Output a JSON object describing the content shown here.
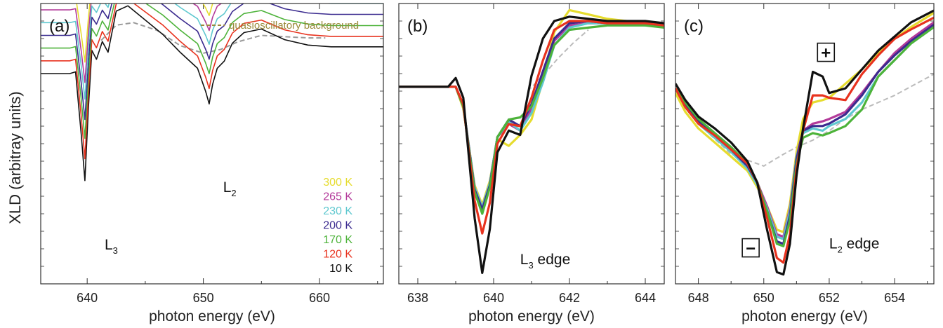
{
  "figure": {
    "ylabel": "XLD  (arbitray units)"
  },
  "chart_data": [
    {
      "type": "line",
      "panel_label": "(a)",
      "xlabel": "photon energy (eV)",
      "xlim": [
        636,
        665.5
      ],
      "ylim": [
        -16.5,
        5.5
      ],
      "xticks": [
        640,
        650,
        660
      ],
      "xminor": [
        645,
        655,
        665
      ],
      "legend_position": "lower-right",
      "annotations": [
        {
          "text": "L",
          "sub": "3",
          "x": 641.5,
          "y": -13.8
        },
        {
          "text": "L",
          "sub": "2",
          "x": 651.7,
          "y": -9.3
        }
      ],
      "reference_legend": {
        "label": "quasioscillatory background",
        "color": "#9a8a3a"
      },
      "background": {
        "name": "quasioscillatory background",
        "color": "#9a9a9a",
        "x": [
          641.2,
          642.5,
          644,
          646,
          648,
          650,
          651.5,
          653,
          655,
          657,
          659,
          660.5
        ],
        "values": [
          2.6,
          3.8,
          4.0,
          3.4,
          2.2,
          1.6,
          1.9,
          2.5,
          3.0,
          2.9,
          2.8,
          2.8
        ]
      },
      "shape": {
        "x": [
          636,
          638.5,
          639,
          639.5,
          639.8,
          640.1,
          640.4,
          640.8,
          641.3,
          641.8,
          642.5,
          643.5,
          645,
          646.5,
          648,
          649.5,
          650.2,
          650.5,
          650.8,
          651.2,
          651.8,
          652.5,
          653.5,
          655,
          657,
          659,
          661,
          663,
          665.5
        ],
        "values": [
          0,
          0,
          0.1,
          -3.5,
          -6.0,
          -2.0,
          1.3,
          0.8,
          1.8,
          1.2,
          3.5,
          3.8,
          3.0,
          2.2,
          1.2,
          0.3,
          -1.0,
          -1.7,
          -0.6,
          0.3,
          0.7,
          1.7,
          2.3,
          2.5,
          1.9,
          1.6,
          1.5,
          1.5,
          1.5
        ]
      },
      "series": [
        {
          "name": "10 K",
          "color": "#111111",
          "offset": 0.0,
          "scale": 1.4
        },
        {
          "name": "120 K",
          "color": "#e8321e",
          "offset": 1.0,
          "scale": 1.28
        },
        {
          "name": "170 K",
          "color": "#4db33a",
          "offset": 2.0,
          "scale": 1.18
        },
        {
          "name": "200 K",
          "color": "#3b2b8f",
          "offset": 3.0,
          "scale": 1.1
        },
        {
          "name": "230 K",
          "color": "#5ec8cf",
          "offset": 4.0,
          "scale": 1.0
        },
        {
          "name": "265 K",
          "color": "#b33a9a",
          "offset": 5.0,
          "scale": 0.95
        },
        {
          "name": "300 K",
          "color": "#e6dc2e",
          "offset": 6.0,
          "scale": 0.85
        }
      ]
    },
    {
      "type": "line",
      "panel_label": "(b)",
      "xlabel": "photon energy (eV)",
      "xlim": [
        637.5,
        644.5
      ],
      "ylim": [
        -9.0,
        3.8
      ],
      "xticks": [
        638,
        640,
        642,
        644
      ],
      "xminor": [
        639,
        641,
        643
      ],
      "annotations": [
        {
          "text": "L",
          "sub": "3",
          "tail": " edge",
          "x": 640.7,
          "y": -8.1
        }
      ],
      "background": {
        "name": "quasioscillatory background",
        "color": "#bbbbbb",
        "x": [
          640.9,
          641.3,
          641.7,
          642.1,
          642.5
        ],
        "values": [
          -0.2,
          0.5,
          1.3,
          2.0,
          2.6
        ]
      },
      "x": [
        637.5,
        638.8,
        639.0,
        639.2,
        639.5,
        639.7,
        639.9,
        640.1,
        640.4,
        640.7,
        641.0,
        641.3,
        641.6,
        642.0,
        642.5,
        643.0,
        643.5,
        644.0,
        644.5
      ],
      "series": [
        {
          "name": "10 K",
          "color": "#111111",
          "values": [
            0,
            0,
            0.4,
            -0.5,
            -6.0,
            -8.5,
            -6.5,
            -3.0,
            -2.0,
            -2.2,
            0.5,
            2.2,
            3.0,
            3.2,
            3.1,
            3.0,
            3.0,
            3.0,
            2.9
          ]
        },
        {
          "name": "120 K",
          "color": "#e8321e",
          "values": [
            0,
            0,
            0.0,
            -0.8,
            -5.2,
            -6.7,
            -5.3,
            -2.6,
            -1.7,
            -1.8,
            -0.5,
            1.2,
            2.6,
            3.0,
            3.0,
            2.9,
            2.9,
            2.9,
            2.8
          ]
        },
        {
          "name": "170 K",
          "color": "#4db33a",
          "values": [
            0,
            0,
            0.0,
            -0.9,
            -4.8,
            -5.8,
            -4.6,
            -2.3,
            -1.5,
            -1.4,
            -0.9,
            0.4,
            1.9,
            2.6,
            2.7,
            2.8,
            2.8,
            2.8,
            2.7
          ]
        },
        {
          "name": "200 K",
          "color": "#3b2b8f",
          "values": [
            0,
            0,
            0.0,
            -0.9,
            -4.7,
            -5.6,
            -4.5,
            -2.3,
            -1.5,
            -1.8,
            -0.8,
            0.7,
            2.2,
            2.9,
            3.0,
            2.9,
            2.9,
            2.9,
            2.8
          ]
        },
        {
          "name": "230 K",
          "color": "#5ec8cf",
          "values": [
            0,
            0,
            0.0,
            -0.9,
            -4.6,
            -5.5,
            -4.4,
            -2.3,
            -1.6,
            -2.0,
            -1.2,
            0.2,
            1.9,
            2.7,
            2.9,
            2.9,
            2.9,
            2.8,
            2.8
          ]
        },
        {
          "name": "265 K",
          "color": "#b33a9a",
          "values": [
            0,
            0,
            0.0,
            -0.9,
            -4.6,
            -5.5,
            -4.4,
            -2.3,
            -1.7,
            -2.0,
            -1.0,
            0.6,
            2.1,
            2.8,
            2.9,
            2.9,
            2.9,
            2.9,
            2.8
          ]
        },
        {
          "name": "300 K",
          "color": "#e6dc2e",
          "values": [
            0,
            0,
            0.0,
            -1.0,
            -4.5,
            -5.4,
            -4.3,
            -2.4,
            -2.7,
            -2.2,
            -1.5,
            0.3,
            2.5,
            3.5,
            3.3,
            3.1,
            3.0,
            2.9,
            2.8
          ]
        }
      ]
    },
    {
      "type": "line",
      "panel_label": "(c)",
      "xlabel": "photon energy (eV)",
      "xlim": [
        647.3,
        655.2
      ],
      "ylim": [
        -8.3,
        3.6
      ],
      "xticks": [
        648,
        650,
        652,
        654
      ],
      "xminor": [
        649,
        651,
        653,
        655
      ],
      "annotations": [
        {
          "text": "L",
          "sub": "2",
          "tail": " edge",
          "x": 652.0,
          "y": -6.8
        }
      ],
      "markers": [
        {
          "label": "+",
          "x": 651.9,
          "y": 1.5
        },
        {
          "label": "−",
          "x": 649.6,
          "y": -6.8
        }
      ],
      "background": {
        "name": "quasioscillatory background",
        "color": "#bbbbbb",
        "x": [
          647.3,
          648.0,
          649.0,
          650.0,
          650.6,
          651.0,
          651.5,
          652.0,
          652.5,
          653.0,
          654.0,
          655.2
        ],
        "values": [
          -0.2,
          -1.5,
          -2.8,
          -3.3,
          -2.8,
          -2.5,
          -2.2,
          -1.8,
          -1.3,
          -0.9,
          -0.3,
          0.6
        ]
      },
      "x": [
        647.3,
        647.6,
        648.0,
        648.5,
        649.0,
        649.5,
        649.8,
        650.1,
        650.4,
        650.6,
        650.8,
        651.0,
        651.2,
        651.5,
        651.8,
        652.0,
        652.5,
        653.0,
        653.5,
        654.0,
        654.5,
        655.2
      ],
      "series": [
        {
          "name": "10 K",
          "color": "#111111",
          "values": [
            0.2,
            -0.5,
            -1.2,
            -1.7,
            -2.3,
            -3.1,
            -4.0,
            -6.0,
            -7.8,
            -7.9,
            -6.6,
            -3.7,
            -1.7,
            0.7,
            0.5,
            -0.2,
            0.0,
            0.8,
            1.6,
            2.2,
            2.8,
            3.3
          ]
        },
        {
          "name": "120 K",
          "color": "#e8321e",
          "values": [
            0.0,
            -0.8,
            -1.5,
            -2.0,
            -2.6,
            -3.2,
            -4.0,
            -5.5,
            -7.2,
            -7.4,
            -6.2,
            -3.4,
            -1.8,
            -0.3,
            -0.3,
            -0.4,
            -0.5,
            0.6,
            1.4,
            2.1,
            2.5,
            3.0
          ]
        },
        {
          "name": "170 K",
          "color": "#4db33a",
          "values": [
            0.0,
            -0.6,
            -1.3,
            -1.9,
            -2.5,
            -3.2,
            -4.0,
            -5.2,
            -6.6,
            -6.7,
            -5.6,
            -3.2,
            -2.1,
            -1.9,
            -2.0,
            -1.9,
            -1.6,
            -0.9,
            0.5,
            1.2,
            1.9,
            2.6
          ]
        },
        {
          "name": "200 K",
          "color": "#3b2b8f",
          "values": [
            0.0,
            -0.7,
            -1.4,
            -2.0,
            -2.6,
            -3.3,
            -4.0,
            -5.2,
            -6.5,
            -6.6,
            -5.4,
            -3.0,
            -1.8,
            -1.6,
            -1.6,
            -1.5,
            -1.1,
            -0.3,
            0.7,
            1.4,
            2.0,
            2.7
          ]
        },
        {
          "name": "230 K",
          "color": "#5ec8cf",
          "values": [
            0.0,
            -0.8,
            -1.5,
            -2.1,
            -2.7,
            -3.4,
            -4.1,
            -5.1,
            -6.3,
            -6.4,
            -5.2,
            -2.9,
            -1.9,
            -1.7,
            -1.8,
            -1.6,
            -1.3,
            -0.6,
            0.5,
            1.2,
            1.9,
            2.6
          ]
        },
        {
          "name": "265 K",
          "color": "#b33a9a",
          "values": [
            0.0,
            -0.7,
            -1.4,
            -2.0,
            -2.6,
            -3.3,
            -4.0,
            -5.0,
            -6.2,
            -6.3,
            -5.1,
            -2.9,
            -1.8,
            -1.5,
            -1.4,
            -1.3,
            -1.0,
            -0.2,
            0.7,
            1.5,
            2.1,
            2.8
          ]
        },
        {
          "name": "300 K",
          "color": "#e6dc2e",
          "values": [
            -0.2,
            -1.0,
            -1.7,
            -2.3,
            -2.9,
            -3.5,
            -4.2,
            -5.0,
            -6.0,
            -6.1,
            -4.9,
            -2.7,
            -1.3,
            -0.6,
            -0.5,
            -0.4,
            0.2,
            0.8,
            1.5,
            2.1,
            2.6,
            3.2
          ]
        }
      ]
    }
  ]
}
